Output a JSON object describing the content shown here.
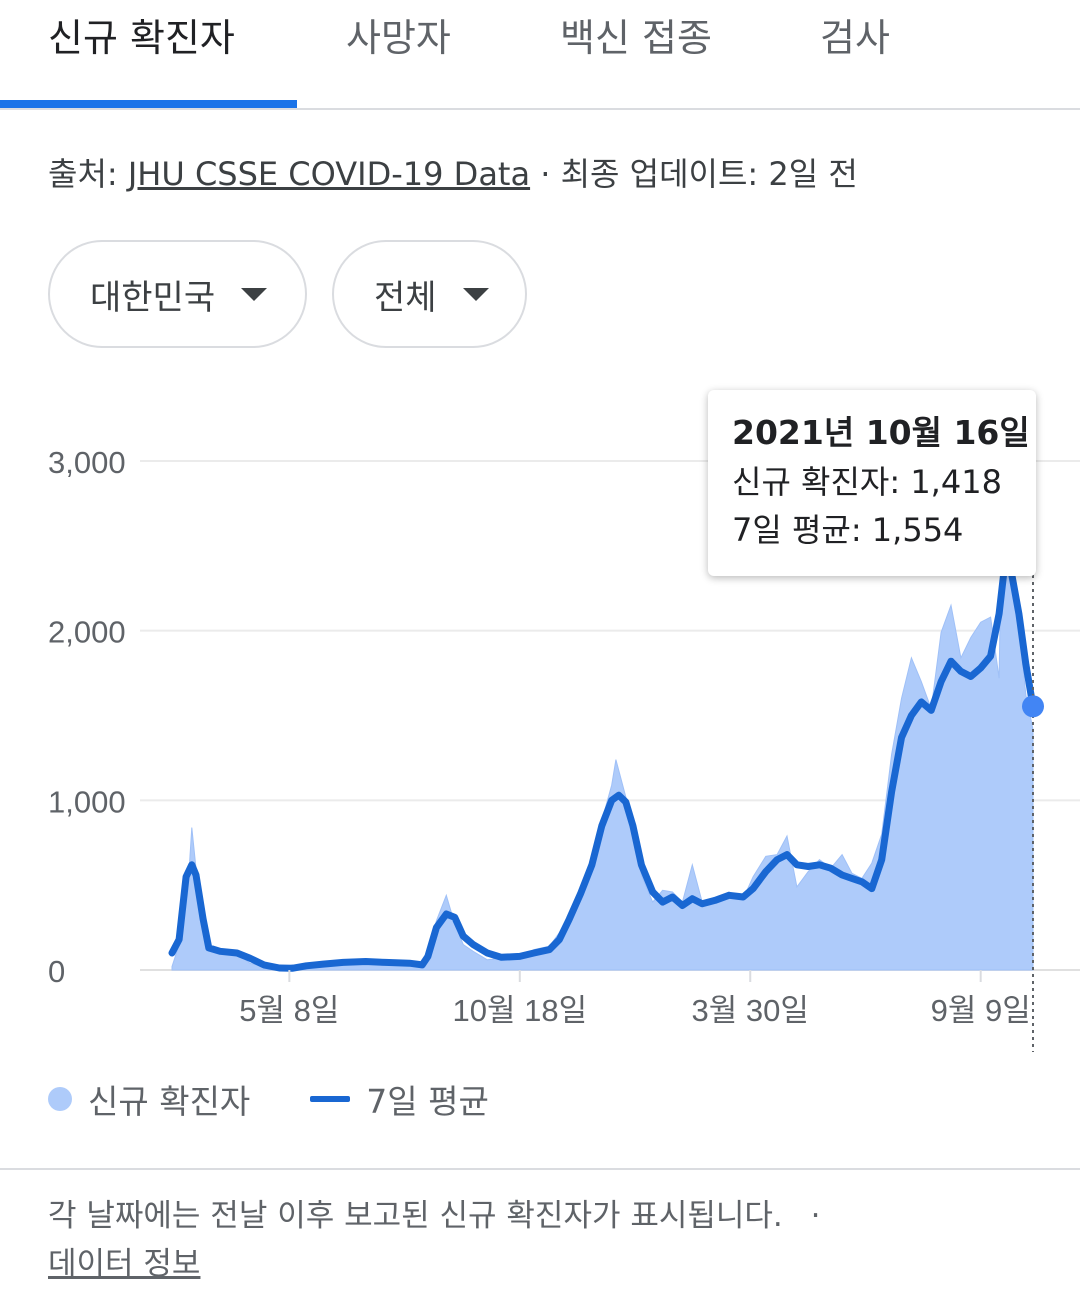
{
  "tabs": [
    {
      "label": "신규 확진자",
      "active": true
    },
    {
      "label": "사망자",
      "active": false
    },
    {
      "label": "백신 접종",
      "active": false
    },
    {
      "label": "검사",
      "active": false
    }
  ],
  "source": {
    "prefix": "출처: ",
    "link_text": "JHU CSSE COVID-19 Data",
    "suffix": " · 최종 업데이트: 2일 전"
  },
  "filters": {
    "region": "대한민국",
    "scope": "전체"
  },
  "tooltip": {
    "date": "2021년 10월 16일",
    "cases_line": "신규 확진자: 1,418",
    "avg_line": "7일 평균: 1,554"
  },
  "legend": {
    "cases": "신규 확진자",
    "average": "7일 평균"
  },
  "footnote": {
    "text": "각 날짜에는 전날 이후 보고된 신규 확진자가 표시됩니다.",
    "separator": "·",
    "link_text": "데이터 정보"
  },
  "colors": {
    "accent": "#1a73e8",
    "bar_fill": "#aecbfa",
    "avg_line": "#1967d2",
    "point": "#4285f4"
  },
  "chart_data": {
    "type": "area",
    "title": "",
    "xlabel": "",
    "ylabel": "",
    "ylim": [
      0,
      3000
    ],
    "grid": true,
    "legend_position": "bottom-left",
    "y_ticks": [
      {
        "value": 0,
        "label": "0"
      },
      {
        "value": 1000,
        "label": "1,000"
      },
      {
        "value": 2000,
        "label": "2,000"
      },
      {
        "value": 3000,
        "label": "3,000"
      }
    ],
    "x_ticks": [
      {
        "date": "2020-05-08",
        "label": "5월 8일"
      },
      {
        "date": "2020-10-18",
        "label": "10월 18일"
      },
      {
        "date": "2021-03-30",
        "label": "3월 30일"
      },
      {
        "date": "2021-09-09",
        "label": "9월 9일"
      }
    ],
    "x_range": [
      "2020-02-15",
      "2021-10-16"
    ],
    "series": [
      {
        "name": "7일 평균",
        "points": [
          [
            "2020-02-15",
            100
          ],
          [
            "2020-02-20",
            180
          ],
          [
            "2020-02-25",
            550
          ],
          [
            "2020-02-29",
            620
          ],
          [
            "2020-03-03",
            560
          ],
          [
            "2020-03-08",
            300
          ],
          [
            "2020-03-12",
            130
          ],
          [
            "2020-03-20",
            110
          ],
          [
            "2020-04-01",
            100
          ],
          [
            "2020-04-10",
            70
          ],
          [
            "2020-04-20",
            30
          ],
          [
            "2020-05-01",
            12
          ],
          [
            "2020-05-10",
            10
          ],
          [
            "2020-05-20",
            25
          ],
          [
            "2020-06-01",
            35
          ],
          [
            "2020-06-15",
            45
          ],
          [
            "2020-07-01",
            50
          ],
          [
            "2020-07-15",
            45
          ],
          [
            "2020-08-01",
            40
          ],
          [
            "2020-08-10",
            30
          ],
          [
            "2020-08-14",
            80
          ],
          [
            "2020-08-20",
            250
          ],
          [
            "2020-08-27",
            330
          ],
          [
            "2020-09-02",
            310
          ],
          [
            "2020-09-08",
            200
          ],
          [
            "2020-09-15",
            150
          ],
          [
            "2020-09-25",
            100
          ],
          [
            "2020-10-05",
            75
          ],
          [
            "2020-10-18",
            80
          ],
          [
            "2020-10-28",
            100
          ],
          [
            "2020-11-08",
            120
          ],
          [
            "2020-11-15",
            180
          ],
          [
            "2020-11-22",
            300
          ],
          [
            "2020-11-30",
            450
          ],
          [
            "2020-12-08",
            620
          ],
          [
            "2020-12-15",
            850
          ],
          [
            "2020-12-22",
            1000
          ],
          [
            "2020-12-27",
            1030
          ],
          [
            "2021-01-01",
            990
          ],
          [
            "2021-01-06",
            850
          ],
          [
            "2021-01-12",
            620
          ],
          [
            "2021-01-20",
            460
          ],
          [
            "2021-01-27",
            400
          ],
          [
            "2021-02-03",
            430
          ],
          [
            "2021-02-10",
            380
          ],
          [
            "2021-02-17",
            420
          ],
          [
            "2021-02-24",
            390
          ],
          [
            "2021-03-05",
            410
          ],
          [
            "2021-03-15",
            440
          ],
          [
            "2021-03-25",
            430
          ],
          [
            "2021-04-01",
            480
          ],
          [
            "2021-04-10",
            580
          ],
          [
            "2021-04-18",
            650
          ],
          [
            "2021-04-25",
            680
          ],
          [
            "2021-05-02",
            620
          ],
          [
            "2021-05-10",
            610
          ],
          [
            "2021-05-18",
            620
          ],
          [
            "2021-05-26",
            600
          ],
          [
            "2021-06-03",
            560
          ],
          [
            "2021-06-10",
            540
          ],
          [
            "2021-06-17",
            520
          ],
          [
            "2021-06-24",
            480
          ],
          [
            "2021-07-01",
            650
          ],
          [
            "2021-07-08",
            1050
          ],
          [
            "2021-07-15",
            1370
          ],
          [
            "2021-07-22",
            1500
          ],
          [
            "2021-07-29",
            1580
          ],
          [
            "2021-08-05",
            1530
          ],
          [
            "2021-08-12",
            1700
          ],
          [
            "2021-08-19",
            1820
          ],
          [
            "2021-08-26",
            1760
          ],
          [
            "2021-09-02",
            1730
          ],
          [
            "2021-09-09",
            1780
          ],
          [
            "2021-09-16",
            1850
          ],
          [
            "2021-09-22",
            2100
          ],
          [
            "2021-09-27",
            2460
          ],
          [
            "2021-10-01",
            2330
          ],
          [
            "2021-10-06",
            2100
          ],
          [
            "2021-10-11",
            1800
          ],
          [
            "2021-10-16",
            1554
          ]
        ]
      },
      {
        "name": "신규 확진자",
        "points": [
          [
            "2020-02-15",
            20
          ],
          [
            "2020-02-22",
            200
          ],
          [
            "2020-02-26",
            450
          ],
          [
            "2020-02-29",
            840
          ],
          [
            "2020-03-03",
            600
          ],
          [
            "2020-03-08",
            350
          ],
          [
            "2020-03-12",
            110
          ],
          [
            "2020-03-20",
            100
          ],
          [
            "2020-04-01",
            100
          ],
          [
            "2020-04-10",
            40
          ],
          [
            "2020-04-20",
            20
          ],
          [
            "2020-05-01",
            10
          ],
          [
            "2020-05-10",
            30
          ],
          [
            "2020-05-20",
            20
          ],
          [
            "2020-06-01",
            40
          ],
          [
            "2020-06-15",
            40
          ],
          [
            "2020-07-01",
            50
          ],
          [
            "2020-07-15",
            40
          ],
          [
            "2020-08-01",
            30
          ],
          [
            "2020-08-10",
            40
          ],
          [
            "2020-08-14",
            100
          ],
          [
            "2020-08-20",
            290
          ],
          [
            "2020-08-27",
            440
          ],
          [
            "2020-09-02",
            270
          ],
          [
            "2020-09-08",
            150
          ],
          [
            "2020-09-15",
            110
          ],
          [
            "2020-09-25",
            60
          ],
          [
            "2020-10-05",
            70
          ],
          [
            "2020-10-18",
            70
          ],
          [
            "2020-10-28",
            120
          ],
          [
            "2020-11-08",
            140
          ],
          [
            "2020-11-15",
            220
          ],
          [
            "2020-11-22",
            330
          ],
          [
            "2020-11-30",
            440
          ],
          [
            "2020-12-08",
            600
          ],
          [
            "2020-12-15",
            880
          ],
          [
            "2020-12-22",
            1090
          ],
          [
            "2020-12-25",
            1240
          ],
          [
            "2021-01-01",
            1020
          ],
          [
            "2021-01-06",
            870
          ],
          [
            "2021-01-12",
            560
          ],
          [
            "2021-01-20",
            400
          ],
          [
            "2021-01-27",
            470
          ],
          [
            "2021-02-03",
            460
          ],
          [
            "2021-02-10",
            400
          ],
          [
            "2021-02-17",
            620
          ],
          [
            "2021-02-24",
            400
          ],
          [
            "2021-03-05",
            420
          ],
          [
            "2021-03-15",
            460
          ],
          [
            "2021-03-25",
            420
          ],
          [
            "2021-04-01",
            550
          ],
          [
            "2021-04-10",
            670
          ],
          [
            "2021-04-18",
            680
          ],
          [
            "2021-04-25",
            790
          ],
          [
            "2021-05-02",
            490
          ],
          [
            "2021-05-10",
            580
          ],
          [
            "2021-05-18",
            650
          ],
          [
            "2021-05-26",
            600
          ],
          [
            "2021-06-03",
            680
          ],
          [
            "2021-06-10",
            570
          ],
          [
            "2021-06-17",
            540
          ],
          [
            "2021-06-24",
            630
          ],
          [
            "2021-07-01",
            800
          ],
          [
            "2021-07-08",
            1270
          ],
          [
            "2021-07-15",
            1600
          ],
          [
            "2021-07-22",
            1840
          ],
          [
            "2021-07-29",
            1700
          ],
          [
            "2021-08-05",
            1540
          ],
          [
            "2021-08-12",
            1990
          ],
          [
            "2021-08-19",
            2150
          ],
          [
            "2021-08-26",
            1840
          ],
          [
            "2021-09-02",
            1960
          ],
          [
            "2021-09-09",
            2050
          ],
          [
            "2021-09-16",
            2080
          ],
          [
            "2021-09-22",
            1720
          ],
          [
            "2021-09-25",
            3270
          ],
          [
            "2021-10-01",
            2480
          ],
          [
            "2021-10-06",
            2030
          ],
          [
            "2021-10-11",
            1620
          ],
          [
            "2021-10-16",
            1418
          ]
        ]
      }
    ],
    "highlight": {
      "date": "2021-10-16",
      "cases": 1418,
      "average": 1554
    }
  }
}
